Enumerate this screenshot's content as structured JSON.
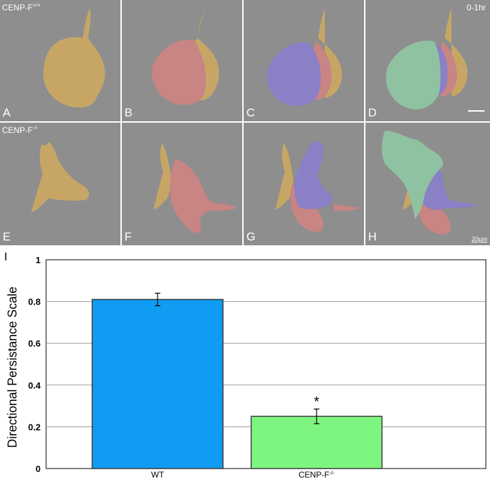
{
  "figure": {
    "row_top_label": "CENP-F",
    "row_top_sup": "+/+",
    "row_bottom_label": "CENP-F",
    "row_bottom_sup": "-/-",
    "time_label": "0-1hr",
    "scale_label": "20µm",
    "panel_letters": [
      "A",
      "B",
      "C",
      "D",
      "E",
      "F",
      "G",
      "H"
    ],
    "chart_panel_letter": "I"
  },
  "colors": {
    "panel_bg": "#8e8e8e",
    "cell_gold": "#c7a665",
    "cell_red": "#c98484",
    "cell_blue": "#8a80c6",
    "cell_green": "#8fc2a1",
    "bar_wt": "#0f9cf2",
    "bar_cenp": "#7ef57e"
  },
  "chart_data": {
    "type": "bar",
    "title": "",
    "xlabel": "",
    "ylabel": "Directional Persistance Scale",
    "categories": [
      "WT",
      "CENP-F"
    ],
    "category_sups": [
      "",
      "-/-"
    ],
    "values": [
      0.81,
      0.25
    ],
    "errors": [
      0.03,
      0.035
    ],
    "annotations": [
      "",
      "*"
    ],
    "ylim": [
      0,
      1
    ],
    "yticks": [
      "0",
      "0.2",
      "0.4",
      "0.6",
      "0.8",
      "1"
    ],
    "grid": true
  }
}
